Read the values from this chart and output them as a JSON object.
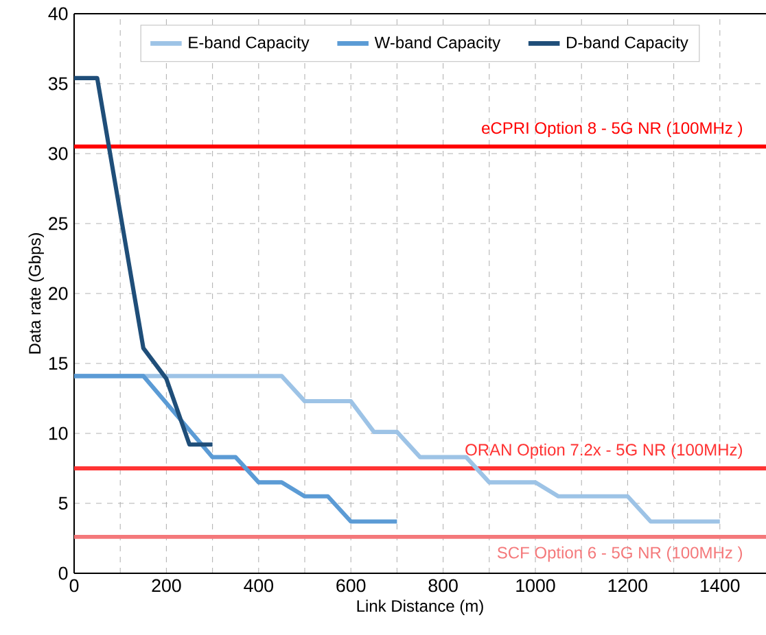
{
  "chart_data": {
    "type": "line",
    "xlabel": "Link Distance (m)",
    "ylabel": "Data rate  (Gbps)",
    "xlim": [
      0,
      1500
    ],
    "ylim": [
      0,
      40
    ],
    "xticks": [
      0,
      {
        "value": 100,
        "label": null
      },
      200,
      {
        "value": 300,
        "label": null
      },
      400,
      {
        "value": 500,
        "label": null
      },
      600,
      {
        "value": 700,
        "label": null
      },
      800,
      {
        "value": 900,
        "label": null
      },
      1000,
      {
        "value": 1100,
        "label": null
      },
      1200,
      {
        "value": 1300,
        "label": null
      },
      1400
    ],
    "yticks": [
      0,
      5,
      10,
      15,
      20,
      25,
      30,
      35,
      40
    ],
    "grid": true,
    "legend": "top",
    "line_style": "solid",
    "marker": "none",
    "series": [
      {
        "name": "E-band Capacity",
        "color": "#9dc3e6",
        "x": [
          0,
          450,
          500,
          600,
          650,
          700,
          750,
          850,
          900,
          1000,
          1050,
          1200,
          1250,
          1400
        ],
        "values": [
          14.1,
          14.1,
          12.3,
          12.3,
          10.1,
          10.1,
          8.3,
          8.3,
          6.5,
          6.5,
          5.5,
          5.5,
          3.7,
          3.7
        ]
      },
      {
        "name": "W-band Capacity",
        "color": "#5b9bd5",
        "x": [
          0,
          150,
          300,
          350,
          400,
          450,
          500,
          550,
          600,
          700
        ],
        "values": [
          14.1,
          14.1,
          8.3,
          8.3,
          6.5,
          6.5,
          5.5,
          5.5,
          3.7,
          3.7
        ]
      },
      {
        "name": "D-band Capacity",
        "color": "#1f4e79",
        "x": [
          0,
          50,
          150,
          200,
          250,
          300
        ],
        "values": [
          35.4,
          35.4,
          16.1,
          13.9,
          9.2,
          9.2
        ]
      }
    ],
    "ref_lines": [
      {
        "axis": "y",
        "value": 30.5,
        "label": "eCPRI Option 8 - 5G NR (100MHz )",
        "color": "#ff0000"
      },
      {
        "axis": "y",
        "value": 7.5,
        "label": "ORAN Option 7.2x - 5G NR (100MHz)",
        "color": "#ff3333"
      },
      {
        "axis": "y",
        "value": 2.6,
        "label": "SCF Option 6 - 5G NR (100MHz )",
        "color": "#f4787a"
      }
    ]
  }
}
